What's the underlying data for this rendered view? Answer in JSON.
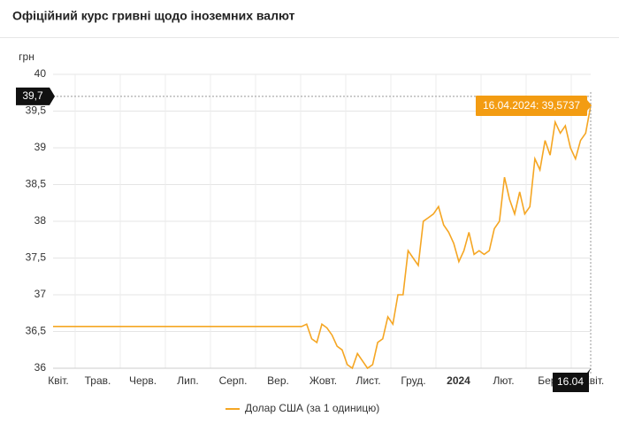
{
  "chart_data": {
    "type": "line",
    "title": "Офіційний курс гривні щодо іноземних валют",
    "y_label": "грн",
    "ylim": [
      36,
      40
    ],
    "yticks": [
      36,
      {
        "value": 36.5,
        "label": "36,5"
      },
      37,
      {
        "value": 37.5,
        "label": "37,5"
      },
      38,
      {
        "value": 38.5,
        "label": "38,5"
      },
      39,
      {
        "value": 39.5,
        "label": "39,5"
      },
      40
    ],
    "xticks": [
      "Квіт.",
      "Трав.",
      "Черв.",
      "Лип.",
      "Серп.",
      "Вер.",
      "Жовт.",
      "Лист.",
      "Груд.",
      "2024",
      "Лют.",
      "Бер.",
      "Квіт."
    ],
    "grid": true,
    "legend": "bottom",
    "series": [
      {
        "name": "Долар США (за 1 одиницю)",
        "color": "#f5a623",
        "values": [
          36.5686,
          36.5686,
          36.5686,
          36.5686,
          36.5686,
          36.5686,
          36.5686,
          36.5686,
          36.5686,
          36.5686,
          36.5686,
          36.5686,
          36.5686,
          36.5686,
          36.5686,
          36.5686,
          36.5686,
          36.5686,
          36.5686,
          36.5686,
          36.5686,
          36.5686,
          36.5686,
          36.5686,
          36.5686,
          36.5686,
          36.5686,
          36.5686,
          36.5686,
          36.5686,
          36.5686,
          36.5686,
          36.5686,
          36.5686,
          36.5686,
          36.5686,
          36.5686,
          36.5686,
          36.5686,
          36.5686,
          36.5686,
          36.5686,
          36.5686,
          36.5686,
          36.5686,
          36.5686,
          36.5686,
          36.5686,
          36.5686,
          36.5686,
          36.6,
          36.4,
          36.35,
          36.6,
          36.55,
          36.45,
          36.3,
          36.25,
          36.05,
          36.0,
          36.2,
          36.1,
          36.0,
          36.05,
          36.35,
          36.4,
          36.7,
          36.6,
          37.0,
          37.0,
          37.6,
          37.5,
          37.4,
          38.0,
          38.05,
          38.1,
          38.2,
          37.95,
          37.85,
          37.7,
          37.45,
          37.6,
          37.85,
          37.55,
          37.6,
          37.55,
          37.6,
          37.9,
          38.0,
          38.6,
          38.3,
          38.1,
          38.4,
          38.1,
          38.2,
          38.85,
          38.7,
          39.1,
          38.9,
          39.35,
          39.2,
          39.3,
          39.0,
          38.85,
          39.1,
          39.2,
          39.5737
        ]
      }
    ],
    "tooltip": "16.04.2024: 39,5737",
    "crosshair": {
      "y": {
        "value": 39.7,
        "label": "39,7"
      },
      "x_label": "16.04"
    }
  }
}
